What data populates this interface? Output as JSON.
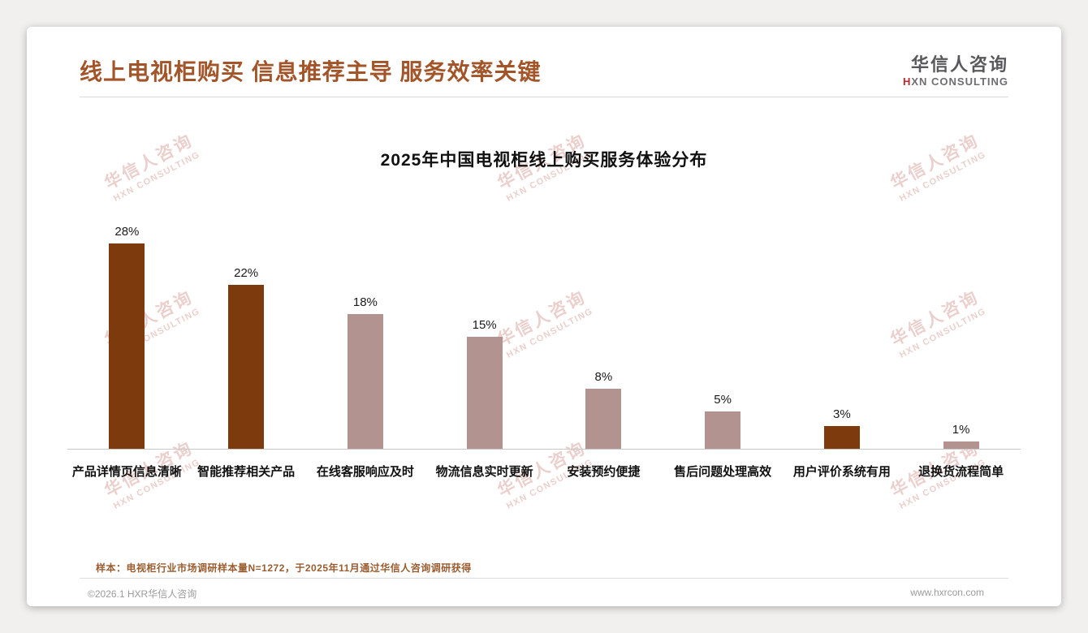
{
  "page": {
    "title": "线上电视柜购买 信息推荐主导 服务效率关键",
    "logo": {
      "cn": "华信人咨询",
      "en_first": "H",
      "en_rest": "XN CONSULTING"
    },
    "footnote": "样本：电视柜行业市场调研样本量N=1272，于2025年11月通过华信人咨询调研获得",
    "footer_left": "©2026.1 HXR华信人咨询",
    "footer_right": "www.hxrcon.com",
    "watermark": {
      "cn": "华信人咨询",
      "en": "HXN CONSULTING"
    }
  },
  "colors": {
    "title_brown": "#A3552A",
    "bar_dark": "#7C3A0D",
    "bar_light": "#B39390",
    "accent_red": "#C0272D"
  },
  "chart_data": {
    "type": "bar",
    "title": "2025年中国电视柜线上购买服务体验分布",
    "categories": [
      "产品详情页信息清晰",
      "智能推荐相关产品",
      "在线客服响应及时",
      "物流信息实时更新",
      "安装预约便捷",
      "售后问题处理高效",
      "用户评价系统有用",
      "退换货流程简单"
    ],
    "values": [
      28,
      22,
      18,
      15,
      8,
      5,
      3,
      1
    ],
    "value_labels": [
      "28%",
      "22%",
      "18%",
      "15%",
      "8%",
      "5%",
      "3%",
      "1%"
    ],
    "bar_colors": [
      "#7C3A0D",
      "#7C3A0D",
      "#B39390",
      "#B39390",
      "#B39390",
      "#B39390",
      "#7C3A0D",
      "#B39390"
    ],
    "xlabel": "",
    "ylabel": "",
    "ylim": [
      0,
      30
    ],
    "grid": false,
    "legend": "none"
  }
}
